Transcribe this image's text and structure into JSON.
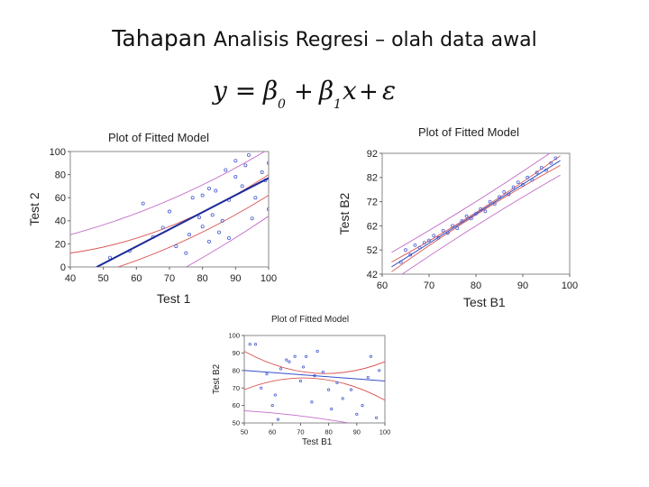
{
  "slide": {
    "title_part1": "Tahapan",
    "title_part2": "Analisis Regresi – olah data awal",
    "formula": {
      "lhs": "y =",
      "b0": "β",
      "b0_sub": "0",
      "plus1": "+",
      "b1": "β",
      "b1_sub": "1",
      "x": "x",
      "plus2": "+",
      "eps": "ε"
    }
  },
  "chart_data": [
    {
      "type": "scatter",
      "title": "Plot of Fitted Model",
      "xlabel": "Test 1",
      "ylabel": "Test 2",
      "xlim": [
        40,
        100
      ],
      "ylim": [
        0,
        100
      ],
      "xticks": [
        40,
        50,
        60,
        70,
        80,
        90,
        100
      ],
      "yticks": [
        0,
        20,
        40,
        60,
        80,
        100
      ],
      "points": [
        {
          "x": 52,
          "y": 8
        },
        {
          "x": 58,
          "y": 14
        },
        {
          "x": 62,
          "y": 55
        },
        {
          "x": 65,
          "y": 26
        },
        {
          "x": 68,
          "y": 34
        },
        {
          "x": 70,
          "y": 48
        },
        {
          "x": 72,
          "y": 18
        },
        {
          "x": 75,
          "y": 12
        },
        {
          "x": 76,
          "y": 28
        },
        {
          "x": 77,
          "y": 60
        },
        {
          "x": 79,
          "y": 43
        },
        {
          "x": 80,
          "y": 62
        },
        {
          "x": 80,
          "y": 35
        },
        {
          "x": 82,
          "y": 22
        },
        {
          "x": 82,
          "y": 68
        },
        {
          "x": 83,
          "y": 45
        },
        {
          "x": 84,
          "y": 66
        },
        {
          "x": 85,
          "y": 30
        },
        {
          "x": 86,
          "y": 40
        },
        {
          "x": 87,
          "y": 84
        },
        {
          "x": 88,
          "y": 58
        },
        {
          "x": 88,
          "y": 25
        },
        {
          "x": 90,
          "y": 78
        },
        {
          "x": 90,
          "y": 92
        },
        {
          "x": 92,
          "y": 70
        },
        {
          "x": 93,
          "y": 88
        },
        {
          "x": 94,
          "y": 97
        },
        {
          "x": 95,
          "y": 42
        },
        {
          "x": 96,
          "y": 60
        },
        {
          "x": 98,
          "y": 82
        },
        {
          "x": 99,
          "y": 75
        },
        {
          "x": 100,
          "y": 90
        },
        {
          "x": 100,
          "y": 50
        }
      ],
      "fit": {
        "x": [
          48,
          100
        ],
        "y": [
          0,
          77
        ]
      },
      "confidence_band": {
        "x": [
          40,
          70,
          100
        ],
        "upper": [
          12,
          35,
          80
        ],
        "lower": [
          -12,
          17,
          62
        ]
      },
      "prediction_band": {
        "x": [
          40,
          70,
          100
        ],
        "upper": [
          28,
          58,
          102
        ],
        "lower": [
          -48,
          -8,
          44
        ]
      }
    },
    {
      "type": "scatter",
      "title": "Plot of Fitted Model",
      "xlabel": "Test B1",
      "ylabel": "Test B2",
      "xlim": [
        60,
        100
      ],
      "ylim": [
        42,
        92
      ],
      "xticks": [
        60,
        70,
        80,
        90,
        100
      ],
      "yticks": [
        42,
        52,
        62,
        72,
        82,
        92
      ],
      "points": [
        {
          "x": 64,
          "y": 47
        },
        {
          "x": 65,
          "y": 52
        },
        {
          "x": 66,
          "y": 50
        },
        {
          "x": 67,
          "y": 54
        },
        {
          "x": 68,
          "y": 53
        },
        {
          "x": 69,
          "y": 55
        },
        {
          "x": 70,
          "y": 56
        },
        {
          "x": 71,
          "y": 58
        },
        {
          "x": 72,
          "y": 57
        },
        {
          "x": 73,
          "y": 60
        },
        {
          "x": 74,
          "y": 59
        },
        {
          "x": 75,
          "y": 62
        },
        {
          "x": 76,
          "y": 61
        },
        {
          "x": 77,
          "y": 64
        },
        {
          "x": 78,
          "y": 66
        },
        {
          "x": 79,
          "y": 65
        },
        {
          "x": 80,
          "y": 67
        },
        {
          "x": 81,
          "y": 69
        },
        {
          "x": 82,
          "y": 68
        },
        {
          "x": 83,
          "y": 72
        },
        {
          "x": 84,
          "y": 71
        },
        {
          "x": 85,
          "y": 74
        },
        {
          "x": 86,
          "y": 76
        },
        {
          "x": 87,
          "y": 75
        },
        {
          "x": 88,
          "y": 78
        },
        {
          "x": 89,
          "y": 80
        },
        {
          "x": 90,
          "y": 79
        },
        {
          "x": 91,
          "y": 82
        },
        {
          "x": 92,
          "y": 81
        },
        {
          "x": 93,
          "y": 84
        },
        {
          "x": 94,
          "y": 86
        },
        {
          "x": 95,
          "y": 85
        },
        {
          "x": 96,
          "y": 88
        },
        {
          "x": 97,
          "y": 90
        }
      ],
      "fit": {
        "x": [
          62,
          98
        ],
        "y": [
          45,
          89
        ]
      },
      "confidence_band": {
        "x": [
          62,
          80,
          98
        ],
        "upper": [
          47,
          67.5,
          91
        ],
        "lower": [
          43,
          66.5,
          87
        ]
      },
      "prediction_band": {
        "x": [
          62,
          80,
          98
        ],
        "upper": [
          51,
          72,
          95
        ],
        "lower": [
          39,
          62,
          83
        ]
      }
    },
    {
      "type": "scatter",
      "title": "Plot of Fitted Model",
      "xlabel": "Test B1",
      "ylabel": "Test B2",
      "xlim": [
        50,
        100
      ],
      "ylim": [
        50,
        100
      ],
      "xticks": [
        50,
        60,
        70,
        80,
        90,
        100
      ],
      "yticks": [
        50,
        60,
        70,
        80,
        90,
        100
      ],
      "points": [
        {
          "x": 52,
          "y": 95
        },
        {
          "x": 54,
          "y": 95
        },
        {
          "x": 56,
          "y": 70
        },
        {
          "x": 58,
          "y": 78
        },
        {
          "x": 60,
          "y": 60
        },
        {
          "x": 61,
          "y": 66
        },
        {
          "x": 62,
          "y": 52
        },
        {
          "x": 63,
          "y": 81
        },
        {
          "x": 65,
          "y": 86
        },
        {
          "x": 66,
          "y": 85
        },
        {
          "x": 68,
          "y": 88
        },
        {
          "x": 70,
          "y": 74
        },
        {
          "x": 71,
          "y": 82
        },
        {
          "x": 72,
          "y": 88
        },
        {
          "x": 74,
          "y": 62
        },
        {
          "x": 75,
          "y": 77
        },
        {
          "x": 76,
          "y": 91
        },
        {
          "x": 78,
          "y": 79
        },
        {
          "x": 80,
          "y": 69
        },
        {
          "x": 81,
          "y": 58
        },
        {
          "x": 83,
          "y": 73
        },
        {
          "x": 85,
          "y": 64
        },
        {
          "x": 88,
          "y": 69
        },
        {
          "x": 90,
          "y": 55
        },
        {
          "x": 92,
          "y": 60
        },
        {
          "x": 94,
          "y": 76
        },
        {
          "x": 95,
          "y": 88
        },
        {
          "x": 97,
          "y": 53
        },
        {
          "x": 98,
          "y": 80
        }
      ],
      "fit": {
        "x": [
          50,
          100
        ],
        "y": [
          80,
          74
        ]
      },
      "confidence_band": {
        "x": [
          50,
          75,
          100
        ],
        "upper": [
          91,
          78.5,
          85
        ],
        "lower": [
          69,
          75.5,
          63
        ]
      },
      "prediction_band": {
        "x": [
          50,
          75,
          100
        ],
        "upper": [
          103,
          101,
          102
        ],
        "lower": [
          57,
          53,
          46
        ]
      }
    }
  ]
}
